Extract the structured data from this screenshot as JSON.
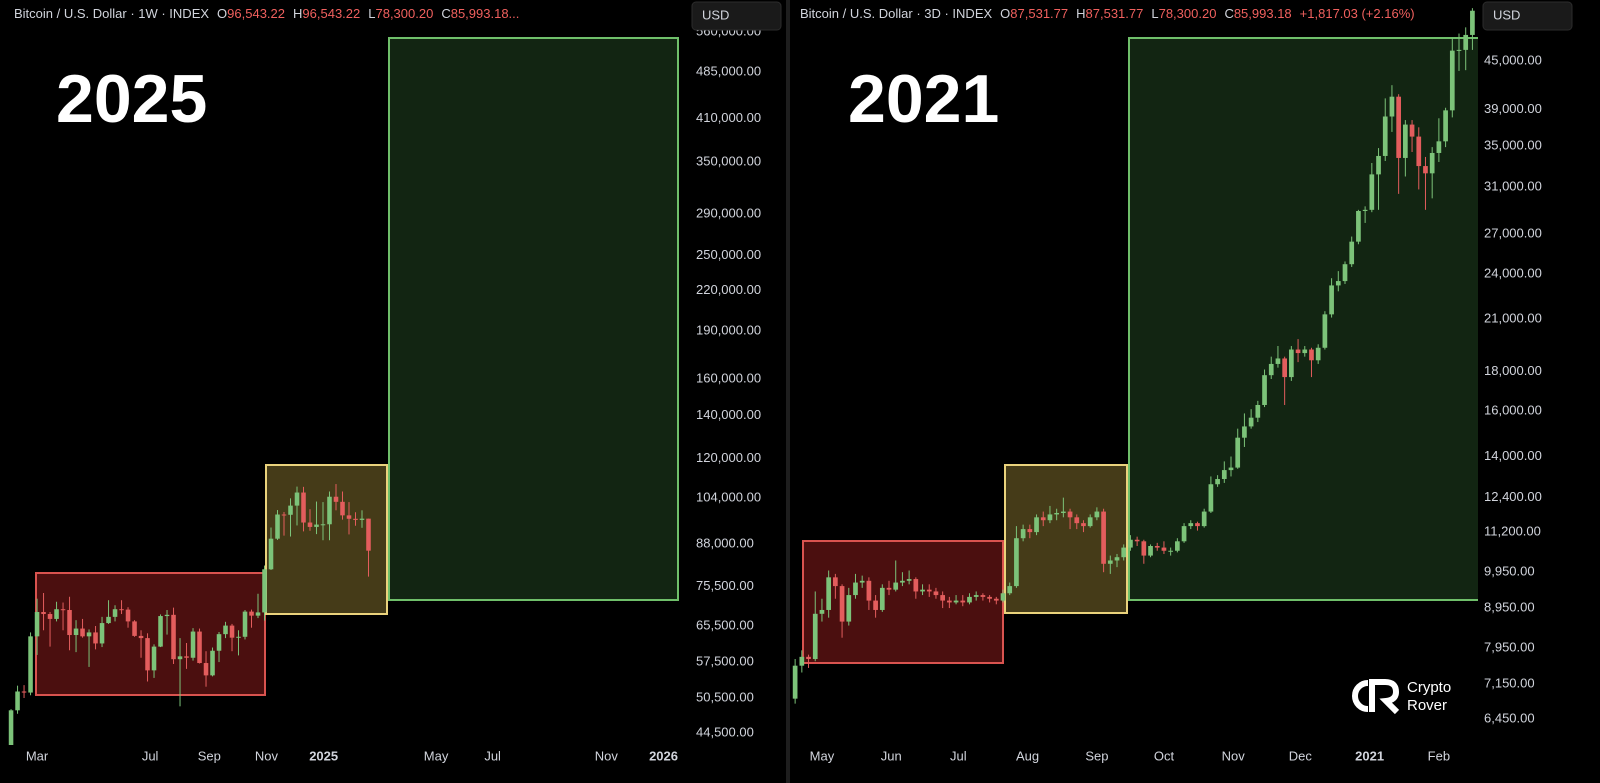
{
  "chart_data": [
    {
      "type": "candlestick",
      "header": {
        "title": "Bitcoin / U.S. Dollar · 1W · INDEX",
        "ohlc": [
          {
            "name": "O",
            "value": 96543.22,
            "label": "96,543.22"
          },
          {
            "name": "H",
            "value": 96543.22,
            "label": "96,543.22"
          },
          {
            "name": "L",
            "value": 78300.2,
            "label": "78,300.20"
          },
          {
            "name": "C",
            "value": 85993.18,
            "label": "85,993.18..."
          }
        ]
      },
      "currency": "USD",
      "annotation": "2025",
      "log_scale": true,
      "up_color": "#7cc379",
      "down_color": "#e35d5d",
      "xlim": [
        -5.7,
        99.7
      ],
      "xticks": [
        {
          "value": 0,
          "label": "Mar"
        },
        {
          "value": 17.4,
          "label": "Jul"
        },
        {
          "value": 26.5,
          "label": "Sep"
        },
        {
          "value": 35.3,
          "label": "Nov"
        },
        {
          "value": 44.1,
          "label": "2025"
        },
        {
          "value": 61.4,
          "label": "May"
        },
        {
          "value": 70.1,
          "label": "Jul"
        },
        {
          "value": 87.6,
          "label": "Nov"
        },
        {
          "value": 96.4,
          "label": "2026"
        }
      ],
      "ylim": [
        42610,
        629000
      ],
      "yticks": [
        {
          "value": 44500,
          "label": "44,500.00"
        },
        {
          "value": 50500,
          "label": "50,500.00"
        },
        {
          "value": 57500,
          "label": "57,500.00"
        },
        {
          "value": 65500,
          "label": "65,500.00"
        },
        {
          "value": 75500,
          "label": "75,500.00"
        },
        {
          "value": 88000,
          "label": "88,000.00"
        },
        {
          "value": 104000,
          "label": "104,000.00"
        },
        {
          "value": 120000,
          "label": "120,000.00"
        },
        {
          "value": 140000,
          "label": "140,000.00"
        },
        {
          "value": 160000,
          "label": "160,000.00"
        },
        {
          "value": 190000,
          "label": "190,000.00"
        },
        {
          "value": 220000,
          "label": "220,000.00"
        },
        {
          "value": 250000,
          "label": "250,000.00"
        },
        {
          "value": 290000,
          "label": "290,000.00"
        },
        {
          "value": 350000,
          "label": "350,000.00"
        },
        {
          "value": 410000,
          "label": "410,000.00"
        },
        {
          "value": 485000,
          "label": "485,000.00"
        },
        {
          "value": 560000,
          "label": "560,000.00"
        }
      ],
      "x": [
        -4,
        -3,
        -2,
        -1,
        0,
        1,
        2,
        3,
        4,
        5,
        6,
        7,
        8,
        9,
        10,
        11,
        12,
        13,
        14,
        15,
        16,
        17,
        18,
        19,
        20,
        21,
        22,
        23,
        24,
        25,
        26,
        27,
        28,
        29,
        30,
        31,
        32,
        33,
        34,
        35,
        36,
        37,
        38,
        39,
        40,
        41,
        42,
        43,
        44,
        45,
        46,
        47,
        48,
        49,
        50,
        51
      ],
      "open": [
        42600,
        48300,
        51700,
        51500,
        63100,
        68900,
        68400,
        67200,
        69600,
        69400,
        63400,
        64900,
        63100,
        64000,
        61500,
        66200,
        67700,
        69600,
        69500,
        66600,
        63200,
        62700,
        55800,
        60800,
        67900,
        68200,
        58100,
        58700,
        58400,
        64200,
        57300,
        54800,
        59900,
        63600,
        65600,
        62800,
        63000,
        69000,
        68000,
        68800,
        80400,
        89800,
        98000,
        97900,
        101200,
        106100,
        95200,
        93700,
        94500,
        94600,
        104500,
        102600,
        97700,
        96500,
        96100,
        96543.22
      ],
      "high": [
        48500,
        52800,
        52900,
        64000,
        72300,
        73800,
        68900,
        71500,
        71300,
        72800,
        66900,
        67200,
        64700,
        65500,
        67700,
        71900,
        70600,
        71900,
        70100,
        66900,
        64500,
        63800,
        61300,
        68300,
        69400,
        70000,
        62700,
        61600,
        65000,
        64900,
        59800,
        60600,
        64100,
        66500,
        66000,
        64500,
        69400,
        69500,
        73600,
        81500,
        93500,
        99600,
        98900,
        103900,
        108400,
        108300,
        99900,
        102700,
        102500,
        106500,
        109400,
        106500,
        102500,
        98800,
        99500,
        96543.22
      ],
      "low": [
        42500,
        47700,
        50500,
        51000,
        59000,
        64500,
        60800,
        66600,
        64500,
        60000,
        59600,
        62800,
        56500,
        60200,
        60700,
        66000,
        66600,
        68400,
        65100,
        63000,
        58400,
        53600,
        54300,
        60700,
        63500,
        57100,
        49000,
        56100,
        57800,
        57200,
        52600,
        54600,
        57500,
        62700,
        59800,
        58900,
        62400,
        65100,
        67400,
        66800,
        80200,
        89400,
        90800,
        90500,
        94200,
        92200,
        92400,
        91300,
        89300,
        89300,
        99500,
        96200,
        91200,
        94100,
        93400,
        78300.2
      ],
      "close": [
        48300,
        51700,
        51500,
        63100,
        68900,
        68400,
        67200,
        69600,
        69400,
        63400,
        64900,
        63100,
        64000,
        61500,
        66200,
        67700,
        69600,
        69500,
        66600,
        63200,
        62700,
        55800,
        60800,
        67900,
        68200,
        58100,
        58700,
        58400,
        64200,
        57300,
        54800,
        59900,
        63600,
        65600,
        62800,
        63000,
        69000,
        68000,
        68800,
        80400,
        89800,
        98000,
        97900,
        101200,
        106100,
        95200,
        93700,
        94500,
        94600,
        104500,
        102600,
        97700,
        96500,
        96100,
        96543.22,
        85993.18
      ]
    },
    {
      "type": "candlestick",
      "header": {
        "title": "Bitcoin / U.S. Dollar · 3D · INDEX",
        "ohlc": [
          {
            "name": "O",
            "value": 87531.77,
            "label": "87,531.77"
          },
          {
            "name": "H",
            "value": 87531.77,
            "label": "87,531.77"
          },
          {
            "name": "L",
            "value": 78300.2,
            "label": "78,300.20"
          },
          {
            "name": "C",
            "value": 85993.18,
            "label": "85,993.18"
          }
        ],
        "change": {
          "value": 1817.03,
          "label": "+1,817.03 (+2.16%)"
        }
      },
      "currency": "USD",
      "annotation": "2021",
      "log_scale": true,
      "up_color": "#7cc379",
      "down_color": "#e35d5d",
      "xlim": [
        -13.4,
        293.5
      ],
      "xticks": [
        {
          "value": 0,
          "label": "May"
        },
        {
          "value": 31,
          "label": "Jun"
        },
        {
          "value": 61,
          "label": "Jul"
        },
        {
          "value": 92,
          "label": "Aug"
        },
        {
          "value": 123,
          "label": "Sep"
        },
        {
          "value": 153,
          "label": "Oct"
        },
        {
          "value": 184,
          "label": "Nov"
        },
        {
          "value": 214,
          "label": "Dec"
        },
        {
          "value": 245,
          "label": "2021"
        },
        {
          "value": 276,
          "label": "Feb"
        }
      ],
      "ylim": [
        5974,
        53880
      ],
      "yticks": [
        {
          "value": 6450,
          "label": "6,450.00"
        },
        {
          "value": 7150,
          "label": "7,150.00"
        },
        {
          "value": 7950,
          "label": "7,950.00"
        },
        {
          "value": 8950,
          "label": "8,950.00"
        },
        {
          "value": 9950,
          "label": "9,950.00"
        },
        {
          "value": 11200,
          "label": "11,200.00"
        },
        {
          "value": 12400,
          "label": "12,400.00"
        },
        {
          "value": 14000,
          "label": "14,000.00"
        },
        {
          "value": 16000,
          "label": "16,000.00"
        },
        {
          "value": 18000,
          "label": "18,000.00"
        },
        {
          "value": 21000,
          "label": "21,000.00"
        },
        {
          "value": 24000,
          "label": "24,000.00"
        },
        {
          "value": 27000,
          "label": "27,000.00"
        },
        {
          "value": 31000,
          "label": "31,000.00"
        },
        {
          "value": 35000,
          "label": "35,000.00"
        },
        {
          "value": 39000,
          "label": "39,000.00"
        },
        {
          "value": 45000,
          "label": "45,000.00"
        }
      ],
      "x": [
        -12,
        -9,
        -6,
        -3,
        0,
        3,
        6,
        9,
        12,
        15,
        18,
        21,
        24,
        27,
        30,
        33,
        36,
        39,
        42,
        45,
        48,
        51,
        54,
        57,
        60,
        63,
        66,
        69,
        72,
        75,
        78,
        81,
        84,
        87,
        90,
        93,
        96,
        99,
        102,
        105,
        108,
        111,
        114,
        117,
        120,
        123,
        126,
        129,
        132,
        135,
        138,
        141,
        144,
        147,
        150,
        153,
        156,
        159,
        162,
        165,
        168,
        171,
        174,
        177,
        180,
        183,
        186,
        189,
        192,
        195,
        198,
        201,
        204,
        207,
        210,
        213,
        216,
        219,
        222,
        225,
        228,
        231,
        234,
        237,
        240,
        243,
        246,
        249,
        252,
        255,
        258,
        261,
        264,
        267,
        270,
        273,
        276,
        279,
        282,
        285,
        288,
        291
      ],
      "open": [
        6850,
        7550,
        7750,
        7700,
        8800,
        8900,
        9800,
        9550,
        8600,
        9300,
        9650,
        9700,
        9150,
        8900,
        9500,
        9450,
        9650,
        9700,
        9750,
        9400,
        9450,
        9400,
        9300,
        9150,
        9100,
        9150,
        9100,
        9250,
        9300,
        9250,
        9200,
        9150,
        9350,
        9550,
        11000,
        11300,
        11200,
        11700,
        11600,
        11800,
        11850,
        11900,
        11700,
        11500,
        11400,
        11700,
        11900,
        10200,
        10300,
        10400,
        10700,
        10950,
        10900,
        10450,
        10750,
        10700,
        10600,
        10600,
        10900,
        11400,
        11500,
        11400,
        11900,
        12900,
        13100,
        13450,
        13550,
        14800,
        15300,
        15700,
        16300,
        17800,
        18400,
        18700,
        17700,
        19200,
        19000,
        19200,
        18600,
        19300,
        21300,
        23200,
        23500,
        24700,
        26400,
        28900,
        29000,
        32200,
        34000,
        38200,
        40500,
        33800,
        37300,
        36000,
        33000,
        32300,
        34300,
        35500,
        38900,
        46400,
        46500,
        48600
      ],
      "high": [
        7700,
        7900,
        7800,
        9400,
        9200,
        10000,
        9900,
        9600,
        9500,
        9900,
        9850,
        9800,
        9300,
        9600,
        9700,
        10300,
        9950,
        10000,
        9800,
        9600,
        9600,
        9500,
        9400,
        9250,
        9300,
        9300,
        9350,
        9400,
        9350,
        9300,
        9250,
        9450,
        9650,
        11400,
        11450,
        11450,
        11800,
        11900,
        12100,
        12000,
        12400,
        12000,
        11800,
        11600,
        11800,
        12050,
        12000,
        10450,
        10500,
        10800,
        11100,
        11050,
        10950,
        10800,
        10850,
        10900,
        10700,
        11000,
        11500,
        11600,
        11550,
        12000,
        13200,
        13250,
        13800,
        14000,
        15200,
        15900,
        16100,
        16500,
        18100,
        18800,
        19400,
        18800,
        19400,
        19800,
        19400,
        19300,
        19500,
        21500,
        23700,
        24200,
        24900,
        26800,
        29000,
        29300,
        33300,
        34800,
        40300,
        41900,
        40800,
        37800,
        37800,
        37000,
        33900,
        34900,
        38000,
        39200,
        48200,
        48800,
        49700,
        52600
      ],
      "low": [
        6750,
        7400,
        7500,
        7650,
        8600,
        8700,
        9200,
        8200,
        8500,
        9200,
        9500,
        8900,
        8700,
        8850,
        9300,
        9400,
        9550,
        9600,
        9200,
        9300,
        9250,
        9200,
        8950,
        8950,
        9050,
        9000,
        9050,
        9150,
        9150,
        9100,
        9050,
        9100,
        9300,
        9500,
        10900,
        11000,
        11100,
        11400,
        11500,
        11600,
        11700,
        11300,
        11300,
        11200,
        11350,
        11600,
        9950,
        9900,
        10100,
        10300,
        10600,
        10750,
        10200,
        10400,
        10600,
        10500,
        10450,
        10550,
        10850,
        11300,
        11250,
        11350,
        11850,
        12800,
        12950,
        13200,
        13500,
        14400,
        15200,
        15500,
        16200,
        17600,
        18200,
        16300,
        17500,
        18500,
        18800,
        17700,
        18400,
        19200,
        21100,
        22800,
        23300,
        24500,
        26200,
        27900,
        28800,
        29000,
        33500,
        36500,
        30400,
        32000,
        34400,
        30800,
        29000,
        30000,
        33400,
        34900,
        38100,
        43700,
        43800,
        46500
      ],
      "close": [
        7550,
        7750,
        7700,
        8800,
        8900,
        9800,
        9550,
        8600,
        9300,
        9650,
        9700,
        9150,
        8900,
        9500,
        9450,
        9650,
        9700,
        9750,
        9400,
        9450,
        9400,
        9300,
        9150,
        9100,
        9150,
        9100,
        9250,
        9300,
        9250,
        9200,
        9150,
        9350,
        9550,
        11000,
        11300,
        11200,
        11700,
        11600,
        11800,
        11850,
        11900,
        11700,
        11500,
        11400,
        11700,
        11900,
        10200,
        10300,
        10400,
        10700,
        10950,
        10900,
        10450,
        10750,
        10700,
        10600,
        10600,
        10900,
        11400,
        11500,
        11400,
        11900,
        12900,
        13100,
        13450,
        13550,
        14800,
        15300,
        15700,
        16300,
        17800,
        18400,
        18700,
        17700,
        19200,
        19000,
        19200,
        18600,
        19300,
        21300,
        23200,
        23500,
        24700,
        26400,
        28900,
        29000,
        32200,
        34000,
        38200,
        40500,
        33800,
        37300,
        36000,
        33000,
        32300,
        34300,
        35500,
        38900,
        46400,
        46500,
        48600,
        52200
      ]
    }
  ],
  "watermark": {
    "line1": "Crypto",
    "line2": "Rover"
  }
}
